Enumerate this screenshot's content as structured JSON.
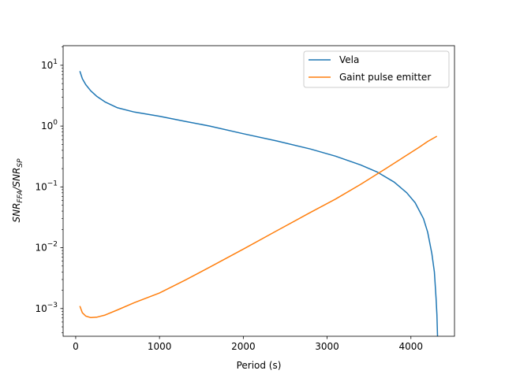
{
  "chart_data": {
    "type": "line",
    "xlabel": "Period (s)",
    "ylabel": "SNR_FFA / SNR_SP",
    "ylabel_parts": {
      "main_a": "SNR",
      "sub_a": "FFA",
      "slash": "/",
      "main_b": "SNR",
      "sub_b": "SP"
    },
    "yscale": "log",
    "xlim": [
      -150,
      4520
    ],
    "ylim": [
      0.00035,
      21
    ],
    "xticks": [
      0,
      1000,
      2000,
      3000,
      4000
    ],
    "xtick_labels": [
      "0",
      "1000",
      "2000",
      "3000",
      "4000"
    ],
    "yticks": [
      0.001,
      0.01,
      0.1,
      1,
      10
    ],
    "ytick_labels": [
      {
        "base": "10",
        "exp": "−3"
      },
      {
        "base": "10",
        "exp": "−2"
      },
      {
        "base": "10",
        "exp": "−1"
      },
      {
        "base": "10",
        "exp": "0"
      },
      {
        "base": "10",
        "exp": "1"
      }
    ],
    "grid": false,
    "legend_position": "top-right",
    "series": [
      {
        "name": "Vela",
        "color": "#1f77b4",
        "x": [
          50,
          80,
          120,
          180,
          250,
          350,
          500,
          700,
          1000,
          1300,
          1600,
          2000,
          2400,
          2800,
          3100,
          3400,
          3600,
          3800,
          3950,
          4050,
          4150,
          4200,
          4250,
          4280,
          4300,
          4310,
          4318
        ],
        "y": [
          8.0,
          6.0,
          4.8,
          3.8,
          3.1,
          2.5,
          2.0,
          1.7,
          1.45,
          1.2,
          1.0,
          0.75,
          0.57,
          0.42,
          0.32,
          0.23,
          0.175,
          0.12,
          0.08,
          0.055,
          0.03,
          0.018,
          0.008,
          0.004,
          0.0015,
          0.0008,
          0.00035
        ]
      },
      {
        "name": "Gaint pulse emitter",
        "color": "#ff7f0e",
        "x": [
          50,
          80,
          120,
          180,
          250,
          350,
          500,
          700,
          1000,
          1300,
          1600,
          2000,
          2400,
          2800,
          3100,
          3400,
          3700,
          3900,
          4100,
          4200,
          4310
        ],
        "y": [
          0.0011,
          0.00085,
          0.00075,
          0.00071,
          0.00072,
          0.00078,
          0.00095,
          0.00125,
          0.0018,
          0.0029,
          0.0048,
          0.0095,
          0.019,
          0.038,
          0.063,
          0.11,
          0.2,
          0.3,
          0.45,
          0.56,
          0.68
        ]
      }
    ]
  }
}
